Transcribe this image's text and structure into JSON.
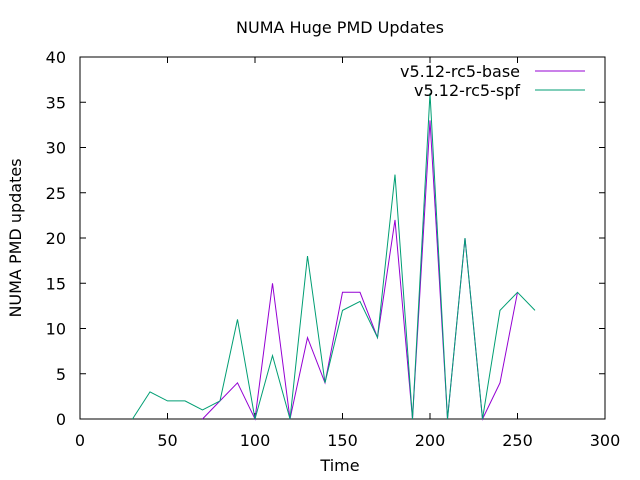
{
  "chart_data": {
    "type": "line",
    "title": "NUMA Huge PMD Updates",
    "xlabel": "Time",
    "ylabel": "NUMA PMD updates",
    "xlim": [
      0,
      300
    ],
    "ylim": [
      0,
      40
    ],
    "xticks": [
      0,
      50,
      100,
      150,
      200,
      250,
      300
    ],
    "yticks": [
      0,
      5,
      10,
      15,
      20,
      25,
      30,
      35,
      40
    ],
    "grid": false,
    "legend_position": "top-right",
    "series": [
      {
        "name": "v5.12-rc5-base",
        "color": "#9400d3",
        "x": [
          70,
          80,
          90,
          100,
          110,
          120,
          130,
          140,
          150,
          160,
          170,
          180,
          190,
          200,
          210,
          220,
          230,
          240,
          250
        ],
        "y": [
          0,
          2,
          4,
          0,
          15,
          0,
          9,
          4,
          14,
          14,
          9,
          22,
          0,
          33,
          0,
          20,
          0,
          4,
          14
        ]
      },
      {
        "name": "v5.12-rc5-spf",
        "color": "#009e73",
        "x": [
          30,
          40,
          50,
          60,
          70,
          80,
          90,
          100,
          110,
          120,
          130,
          140,
          150,
          160,
          170,
          180,
          190,
          200,
          210,
          220,
          230,
          240,
          250,
          260
        ],
        "y": [
          0,
          3,
          2,
          2,
          1,
          2,
          11,
          0,
          7,
          0,
          18,
          4,
          12,
          13,
          9,
          27,
          0,
          36,
          0,
          20,
          0,
          12,
          14,
          12
        ]
      }
    ]
  }
}
